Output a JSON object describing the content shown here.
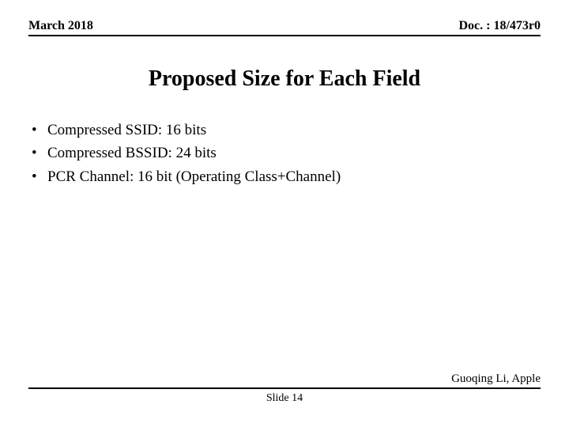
{
  "header": {
    "date": "March 2018",
    "doc_id": "Doc. : 18/473r0"
  },
  "title": "Proposed Size for Each Field",
  "bullets": [
    "Compressed SSID: 16 bits",
    "Compressed BSSID: 24 bits",
    "PCR Channel: 16 bit (Operating Class+Channel)"
  ],
  "footer": {
    "attribution": "Guoqing Li, Apple",
    "slide_label": "Slide 14"
  }
}
